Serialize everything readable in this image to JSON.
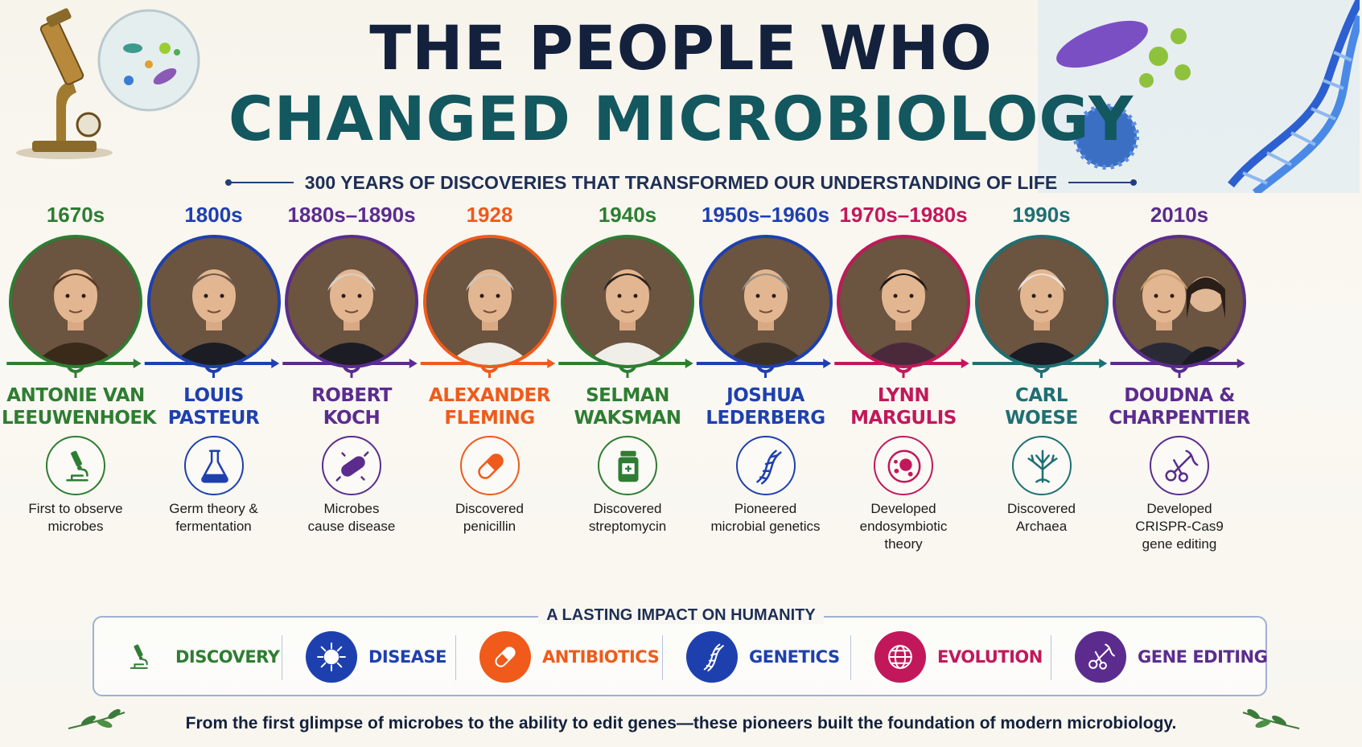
{
  "title": {
    "line1": "THE PEOPLE WHO",
    "line2": "CHANGED MICROBIOLOGY",
    "subtitle": "300 YEARS OF DISCOVERIES THAT TRANSFORMED OUR UNDERSTANDING OF LIFE"
  },
  "timeline": [
    {
      "year": "1670s",
      "name_line1": "ANTONIE VAN",
      "name_line2": "LEEUWENHOEK",
      "desc_line1": "First to observe",
      "desc_line2": "microbes",
      "desc_line3": "",
      "color": "#2e7d32",
      "icon": "microscope-icon"
    },
    {
      "year": "1800s",
      "name_line1": "LOUIS",
      "name_line2": "PASTEUR",
      "desc_line1": "Germ theory &",
      "desc_line2": "fermentation",
      "desc_line3": "",
      "color": "#1e40af",
      "icon": "flask-icon"
    },
    {
      "year": "1880s–1890s",
      "name_line1": "ROBERT",
      "name_line2": "KOCH",
      "desc_line1": "Microbes",
      "desc_line2": "cause disease",
      "desc_line3": "",
      "color": "#5b2c8e",
      "icon": "bacterium-icon"
    },
    {
      "year": "1928",
      "name_line1": "ALEXANDER",
      "name_line2": "FLEMING",
      "desc_line1": "Discovered",
      "desc_line2": "penicillin",
      "desc_line3": "",
      "color": "#f05a1a",
      "icon": "capsule-icon"
    },
    {
      "year": "1940s",
      "name_line1": "SELMAN",
      "name_line2": "WAKSMAN",
      "desc_line1": "Discovered",
      "desc_line2": "streptomycin",
      "desc_line3": "",
      "color": "#2e7d32",
      "icon": "medicine-bottle-icon"
    },
    {
      "year": "1950s–1960s",
      "name_line1": "JOSHUA",
      "name_line2": "LEDERBERG",
      "desc_line1": "Pioneered",
      "desc_line2": "microbial genetics",
      "desc_line3": "",
      "color": "#1e40af",
      "icon": "dna-icon"
    },
    {
      "year": "1970s–1980s",
      "name_line1": "LYNN",
      "name_line2": "MARGULIS",
      "desc_line1": "Developed",
      "desc_line2": "endosymbiotic",
      "desc_line3": "theory",
      "color": "#c2185b",
      "icon": "cell-icon"
    },
    {
      "year": "1990s",
      "name_line1": "CARL",
      "name_line2": "WOESE",
      "desc_line1": "Discovered",
      "desc_line2": "Archaea",
      "desc_line3": "",
      "color": "#1f6f73",
      "icon": "tree-of-life-icon"
    },
    {
      "year": "2010s",
      "name_line1": "DOUDNA &",
      "name_line2": "CHARPENTIER",
      "desc_line1": "Developed",
      "desc_line2": "CRISPR-Cas9",
      "desc_line3": "gene editing",
      "color": "#5b2c8e",
      "icon": "scissors-dna-icon"
    }
  ],
  "impact": {
    "title": "A LASTING IMPACT ON HUMANITY",
    "items": [
      {
        "label": "DISCOVERY",
        "color": "#2e7d32",
        "icon": "microscope-icon"
      },
      {
        "label": "DISEASE",
        "color": "#1e40af",
        "icon": "virus-icon"
      },
      {
        "label": "ANTIBIOTICS",
        "color": "#f05a1a",
        "icon": "capsule-icon"
      },
      {
        "label": "GENETICS",
        "color": "#1e40af",
        "icon": "dna-icon"
      },
      {
        "label": "EVOLUTION",
        "color": "#c2185b",
        "icon": "globe-icon"
      },
      {
        "label": "GENE EDITING",
        "color": "#5b2c8e",
        "icon": "scissors-dna-icon"
      }
    ]
  },
  "footer": "From the first glimpse of microbes to the ability to edit genes—these pioneers built the foundation of modern microbiology."
}
